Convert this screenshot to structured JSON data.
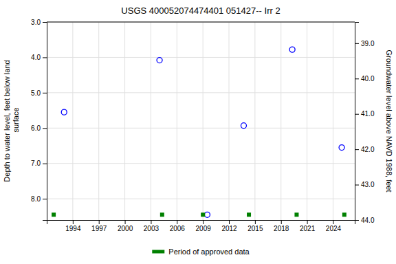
{
  "chart_data": {
    "type": "scatter",
    "title": "USGS 400052074474401 051427-- Irr 2",
    "y_label": "Depth to water level, feet below land\n surface",
    "y2_label": "Groundwater level above NAVD 1988, feet",
    "xlim": [
      1991.0,
      2026.5
    ],
    "xticks": [
      1994,
      1997,
      2000,
      2003,
      2006,
      2009,
      2012,
      2015,
      2018,
      2021,
      2024
    ],
    "ylim": [
      8.6,
      3.0
    ],
    "yticks": [
      {
        "value": 3.0,
        "label": "3.0"
      },
      {
        "value": 4.0,
        "label": "4.0"
      },
      {
        "value": 5.0,
        "label": "5.0"
      },
      {
        "value": 6.0,
        "label": "6.0"
      },
      {
        "value": 7.0,
        "label": "7.0"
      },
      {
        "value": 8.0,
        "label": "8.0"
      }
    ],
    "y2lim": [
      44.0,
      38.4
    ],
    "y2ticks": [
      {
        "value": 44.0,
        "label": "44.0"
      },
      {
        "value": 43.0,
        "label": "43.0"
      },
      {
        "value": 42.0,
        "label": "42.0"
      },
      {
        "value": 41.0,
        "label": "41.0"
      },
      {
        "value": 40.0,
        "label": "40.0"
      },
      {
        "value": 39.0,
        "label": "39.0"
      }
    ],
    "grid": true,
    "legend": "bottom",
    "series": [
      {
        "color": "blue",
        "marker": "circle",
        "x": [
          1993.0,
          2004.0,
          2009.5,
          2013.7,
          2019.3,
          2025.0
        ],
        "values": [
          5.55,
          4.08,
          8.45,
          5.93,
          3.78,
          6.55
        ]
      },
      {
        "name": "Period of approved data",
        "color": "#008000",
        "marker": "square",
        "x": [
          1991.8,
          2004.3,
          2009.0,
          2014.3,
          2019.8,
          2025.3
        ],
        "values": [
          8.45,
          8.45,
          8.45,
          8.45,
          8.45,
          8.45
        ]
      }
    ]
  }
}
